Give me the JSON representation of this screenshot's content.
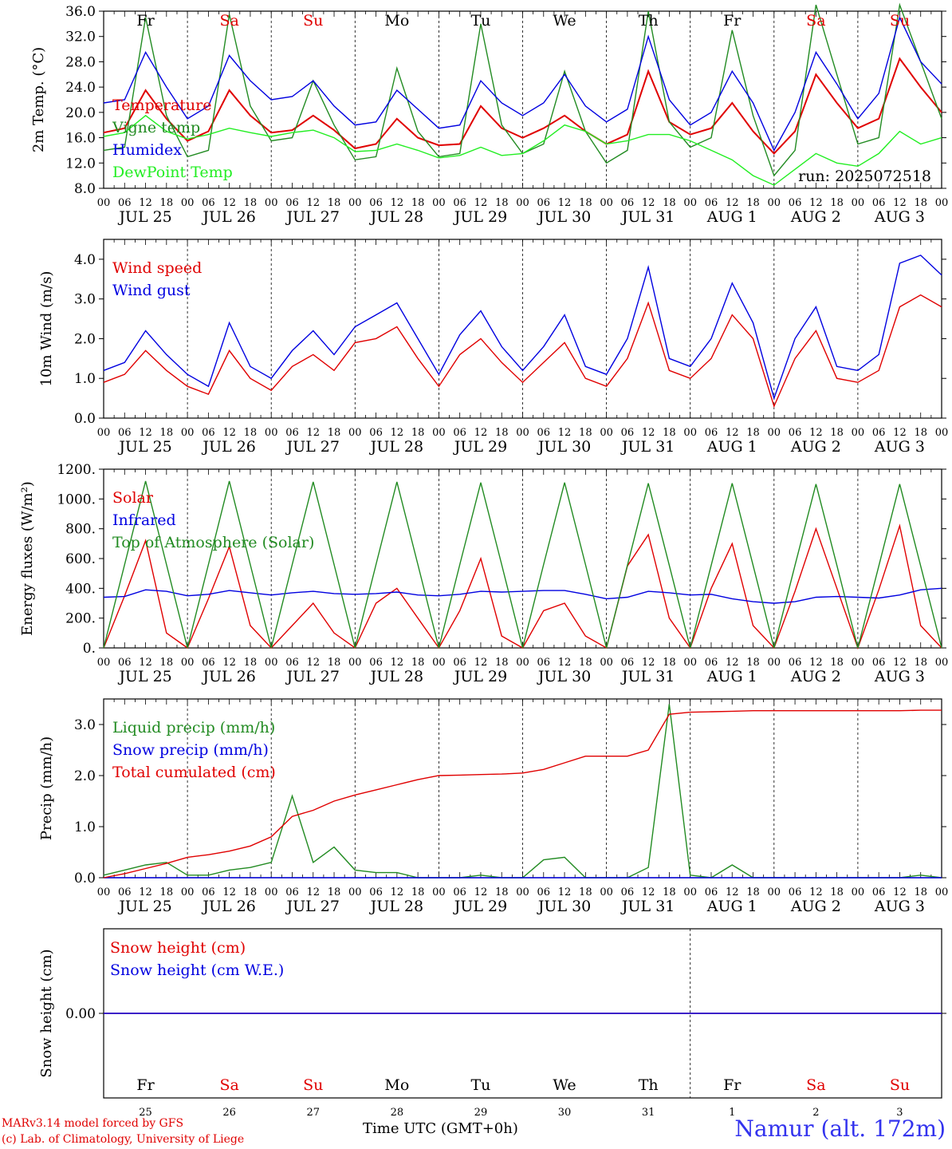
{
  "run_label": "run: 2025072518",
  "footer": {
    "model": "MARv3.14 model forced by GFS",
    "lab": "(c) Lab. of Climatology, University of Liege",
    "time_label": "Time UTC (GMT+0h)",
    "location": "Namur (alt. 172m)"
  },
  "date_labels": [
    "JUL 25",
    "JUL 26",
    "JUL 27",
    "JUL 28",
    "JUL 29",
    "JUL 30",
    "JUL 31",
    "AUG  1",
    "AUG  2",
    "AUG  3"
  ],
  "hour_ticks": [
    "00",
    "06",
    "12",
    "18"
  ],
  "day_names": [
    {
      "label": "Fr",
      "color": "#000000"
    },
    {
      "label": "Sa",
      "color": "#e00000"
    },
    {
      "label": "Su",
      "color": "#e00000"
    },
    {
      "label": "Mo",
      "color": "#000000"
    },
    {
      "label": "Tu",
      "color": "#000000"
    },
    {
      "label": "We",
      "color": "#000000"
    },
    {
      "label": "Th",
      "color": "#000000"
    },
    {
      "label": "Fr",
      "color": "#000000"
    },
    {
      "label": "Sa",
      "color": "#e00000"
    },
    {
      "label": "Su",
      "color": "#e00000"
    }
  ],
  "day_numbers": [
    "25",
    "26",
    "27",
    "28",
    "29",
    "30",
    "31",
    "1",
    "2",
    "3"
  ],
  "chart_data": [
    {
      "type": "line",
      "ylabel": "2m Temp. (°C)",
      "ylim": [
        8,
        36
      ],
      "yticks": [
        "8.0",
        "12.0",
        "16.0",
        "20.0",
        "24.0",
        "28.0",
        "32.0",
        "36.0"
      ],
      "x_days": [
        0,
        0.25,
        0.5,
        0.75,
        1,
        1.25,
        1.5,
        1.75,
        2,
        2.25,
        2.5,
        2.75,
        3,
        3.25,
        3.5,
        3.75,
        4,
        4.25,
        4.5,
        4.75,
        5,
        5.25,
        5.5,
        5.75,
        6,
        6.25,
        6.5,
        6.75,
        7,
        7.25,
        7.5,
        7.75,
        8,
        8.25,
        8.5,
        8.75,
        9,
        9.25,
        9.5,
        9.75,
        10
      ],
      "series": [
        {
          "name": "Temperature",
          "color": "#e00000",
          "values": [
            16.8,
            17.5,
            23.5,
            19.0,
            15.5,
            17.0,
            23.5,
            19.5,
            16.8,
            17.2,
            19.5,
            17.2,
            14.3,
            15.0,
            19.0,
            16.0,
            14.8,
            15.0,
            21.0,
            17.5,
            16.0,
            17.5,
            19.5,
            17.0,
            15.0,
            16.5,
            26.5,
            18.5,
            16.5,
            17.5,
            21.5,
            17.0,
            13.5,
            17.0,
            26.0,
            21.5,
            17.5,
            19.0,
            28.5,
            24.0,
            20.0
          ]
        },
        {
          "name": "Vigne temp",
          "color": "#228b22",
          "values": [
            14.0,
            14.5,
            35.0,
            19.5,
            13.0,
            14.0,
            35.5,
            21.0,
            15.5,
            16.0,
            25.0,
            18.0,
            12.5,
            13.0,
            27.0,
            17.0,
            13.0,
            13.5,
            34.0,
            18.0,
            13.5,
            15.0,
            26.5,
            17.0,
            12.0,
            14.0,
            36.0,
            18.5,
            14.5,
            16.0,
            33.0,
            19.5,
            10.0,
            14.0,
            37.0,
            26.0,
            15.0,
            16.0,
            37.0,
            28.0,
            19.0
          ]
        },
        {
          "name": "Humidex",
          "color": "#0000e0",
          "values": [
            21.5,
            22.0,
            29.5,
            24.0,
            19.0,
            21.0,
            29.0,
            25.0,
            22.0,
            22.5,
            25.0,
            21.0,
            18.0,
            18.5,
            23.5,
            20.5,
            17.5,
            18.0,
            25.0,
            21.5,
            19.5,
            21.5,
            26.0,
            21.0,
            18.5,
            20.5,
            32.0,
            22.0,
            18.0,
            20.0,
            26.5,
            21.5,
            14.0,
            20.0,
            29.5,
            24.5,
            19.0,
            23.0,
            35.0,
            28.0,
            24.5
          ]
        },
        {
          "name": "DewPoint Temp",
          "color": "#22ee22",
          "values": [
            16.2,
            16.8,
            19.5,
            17.0,
            15.8,
            16.5,
            17.5,
            16.8,
            16.2,
            16.8,
            17.2,
            16.0,
            13.8,
            14.0,
            15.0,
            14.0,
            12.8,
            13.2,
            14.5,
            13.2,
            13.5,
            15.5,
            18.0,
            17.0,
            15.0,
            15.5,
            16.5,
            16.5,
            15.5,
            14.0,
            12.5,
            10.0,
            8.5,
            11.0,
            13.5,
            12.0,
            11.5,
            13.5,
            17.0,
            15.0,
            16.0
          ]
        }
      ]
    },
    {
      "type": "line",
      "ylabel": "10m Wind (m/s)",
      "ylim": [
        0,
        4.5
      ],
      "yticks": [
        "0.0",
        "1.0",
        "2.0",
        "3.0",
        "4.0"
      ],
      "x_days": [
        0,
        0.25,
        0.5,
        0.75,
        1,
        1.25,
        1.5,
        1.75,
        2,
        2.25,
        2.5,
        2.75,
        3,
        3.25,
        3.5,
        3.75,
        4,
        4.25,
        4.5,
        4.75,
        5,
        5.25,
        5.5,
        5.75,
        6,
        6.25,
        6.5,
        6.75,
        7,
        7.25,
        7.5,
        7.75,
        8,
        8.25,
        8.5,
        8.75,
        9,
        9.25,
        9.5,
        9.75,
        10
      ],
      "series": [
        {
          "name": "Wind speed",
          "color": "#e00000",
          "values": [
            0.9,
            1.1,
            1.7,
            1.2,
            0.8,
            0.6,
            1.7,
            1.0,
            0.7,
            1.3,
            1.6,
            1.2,
            1.9,
            2.0,
            2.3,
            1.5,
            0.8,
            1.6,
            2.0,
            1.4,
            0.9,
            1.4,
            1.9,
            1.0,
            0.8,
            1.5,
            2.9,
            1.2,
            1.0,
            1.5,
            2.6,
            2.0,
            0.3,
            1.5,
            2.2,
            1.0,
            0.9,
            1.2,
            2.8,
            3.1,
            2.8
          ]
        },
        {
          "name": "Wind gust",
          "color": "#0000e0",
          "values": [
            1.2,
            1.4,
            2.2,
            1.6,
            1.1,
            0.8,
            2.4,
            1.3,
            1.0,
            1.7,
            2.2,
            1.6,
            2.3,
            2.6,
            2.9,
            2.0,
            1.1,
            2.1,
            2.7,
            1.8,
            1.2,
            1.8,
            2.6,
            1.3,
            1.1,
            2.0,
            3.8,
            1.5,
            1.3,
            2.0,
            3.4,
            2.4,
            0.5,
            2.0,
            2.8,
            1.3,
            1.2,
            1.6,
            3.9,
            4.1,
            3.6
          ]
        }
      ]
    },
    {
      "type": "line",
      "ylabel": "Energy fluxes (W/m²)",
      "ylim": [
        0,
        1200
      ],
      "yticks": [
        "0.",
        "200.",
        "400.",
        "600.",
        "800.",
        "1000.",
        "1200."
      ],
      "x_days": [
        0,
        0.25,
        0.5,
        0.75,
        1,
        1.25,
        1.5,
        1.75,
        2,
        2.25,
        2.5,
        2.75,
        3,
        3.25,
        3.5,
        3.75,
        4,
        4.25,
        4.5,
        4.75,
        5,
        5.25,
        5.5,
        5.75,
        6,
        6.25,
        6.5,
        6.75,
        7,
        7.25,
        7.5,
        7.75,
        8,
        8.25,
        8.5,
        8.75,
        9,
        9.25,
        9.5,
        9.75,
        10
      ],
      "series": [
        {
          "name": "Solar",
          "color": "#e00000",
          "values": [
            0,
            350,
            720,
            100,
            0,
            330,
            680,
            150,
            0,
            150,
            300,
            100,
            0,
            300,
            400,
            200,
            0,
            250,
            600,
            80,
            0,
            250,
            300,
            80,
            0,
            550,
            760,
            200,
            0,
            400,
            700,
            150,
            0,
            380,
            800,
            400,
            0,
            390,
            820,
            150,
            0
          ]
        },
        {
          "name": "Infrared",
          "color": "#0000e0",
          "values": [
            340,
            345,
            390,
            380,
            350,
            360,
            385,
            370,
            355,
            370,
            380,
            365,
            360,
            365,
            375,
            355,
            350,
            360,
            380,
            375,
            380,
            385,
            385,
            360,
            330,
            340,
            380,
            370,
            355,
            360,
            330,
            310,
            300,
            310,
            340,
            345,
            340,
            335,
            355,
            390,
            400
          ]
        },
        {
          "name": "Top of Atmosphere (Solar)",
          "color": "#228b22",
          "values": [
            0,
            560,
            1120,
            560,
            0,
            560,
            1120,
            560,
            0,
            560,
            1115,
            560,
            0,
            560,
            1115,
            560,
            0,
            560,
            1110,
            560,
            0,
            560,
            1110,
            560,
            0,
            555,
            1105,
            555,
            0,
            555,
            1105,
            555,
            0,
            555,
            1100,
            555,
            0,
            550,
            1100,
            550,
            0
          ]
        }
      ]
    },
    {
      "type": "line",
      "ylabel": "Precip (mm/h)",
      "ylim": [
        0,
        3.5
      ],
      "yticks": [
        "0.0",
        "1.0",
        "2.0",
        "3.0"
      ],
      "x_days": [
        0,
        0.25,
        0.5,
        0.75,
        1,
        1.25,
        1.5,
        1.75,
        2,
        2.25,
        2.5,
        2.75,
        3,
        3.25,
        3.5,
        3.75,
        4,
        4.25,
        4.5,
        4.75,
        5,
        5.25,
        5.5,
        5.75,
        6,
        6.25,
        6.5,
        6.75,
        7,
        7.25,
        7.5,
        7.75,
        8,
        8.25,
        8.5,
        8.75,
        9,
        9.25,
        9.5,
        9.75,
        10
      ],
      "series": [
        {
          "name": "Liquid precip (mm/h)",
          "color": "#228b22",
          "values": [
            0.05,
            0.15,
            0.25,
            0.3,
            0.05,
            0.05,
            0.15,
            0.2,
            0.3,
            1.6,
            0.3,
            0.6,
            0.15,
            0.1,
            0.1,
            0.0,
            0.0,
            0.0,
            0.05,
            0.0,
            0.0,
            0.35,
            0.4,
            0.0,
            0.0,
            0.0,
            0.2,
            3.4,
            0.05,
            0.0,
            0.25,
            0.0,
            0.0,
            0.0,
            0.0,
            0.0,
            0.0,
            0.0,
            0.0,
            0.05,
            0.0
          ]
        },
        {
          "name": "Snow precip (mm/h)",
          "color": "#0000e0",
          "values": [
            0,
            0,
            0,
            0,
            0,
            0,
            0,
            0,
            0,
            0,
            0,
            0,
            0,
            0,
            0,
            0,
            0,
            0,
            0,
            0,
            0,
            0,
            0,
            0,
            0,
            0,
            0,
            0,
            0,
            0,
            0,
            0,
            0,
            0,
            0,
            0,
            0,
            0,
            0,
            0,
            0
          ]
        },
        {
          "name": "Total cumulated (cm)",
          "color": "#e00000",
          "values": [
            0.0,
            0.08,
            0.18,
            0.28,
            0.4,
            0.45,
            0.52,
            0.62,
            0.8,
            1.2,
            1.32,
            1.5,
            1.62,
            1.72,
            1.82,
            1.92,
            2.0,
            2.01,
            2.02,
            2.03,
            2.05,
            2.12,
            2.25,
            2.38,
            2.38,
            2.38,
            2.5,
            3.2,
            3.24,
            3.25,
            3.26,
            3.27,
            3.27,
            3.27,
            3.27,
            3.27,
            3.27,
            3.27,
            3.27,
            3.28,
            3.28
          ]
        }
      ]
    },
    {
      "type": "line",
      "ylabel": "Snow height (cm)",
      "ylim": [
        -1,
        1
      ],
      "yticks": [
        "0.00"
      ],
      "x_days": [
        0,
        10
      ],
      "series": [
        {
          "name": "Snow height (cm)",
          "color": "#e00000",
          "values": [
            0,
            0
          ]
        },
        {
          "name": "Snow height (cm W.E.)",
          "color": "#0000e0",
          "values": [
            0,
            0
          ]
        }
      ]
    }
  ]
}
